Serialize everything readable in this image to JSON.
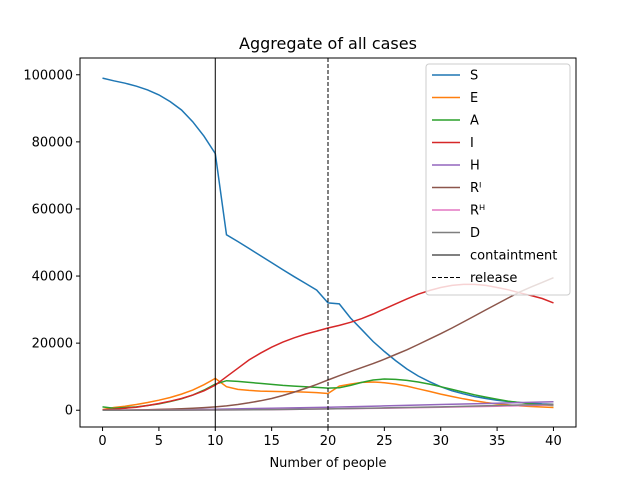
{
  "chart_data": {
    "type": "line",
    "title": "Aggregate of all cases",
    "xlabel": "Number of people",
    "ylabel": "",
    "xlim": [
      -2,
      42
    ],
    "ylim": [
      -5000,
      105000
    ],
    "xticks": [
      0,
      5,
      10,
      15,
      20,
      25,
      30,
      35,
      40
    ],
    "yticks": [
      0,
      20000,
      40000,
      60000,
      80000,
      100000
    ],
    "grid": false,
    "legend_position": "top-right",
    "series": [
      {
        "name": "S",
        "color": "#1f77b4",
        "x": [
          0,
          1,
          2,
          3,
          4,
          5,
          6,
          7,
          8,
          9,
          10,
          11,
          12,
          13,
          14,
          15,
          16,
          17,
          18,
          19,
          20,
          21,
          22,
          23,
          24,
          25,
          26,
          27,
          28,
          29,
          30,
          31,
          32,
          33,
          34,
          35,
          36,
          37,
          38,
          39,
          40
        ],
        "y": [
          99000,
          98200,
          97500,
          96600,
          95500,
          94000,
          92000,
          89500,
          86000,
          81700,
          76500,
          52300,
          50300,
          48200,
          46100,
          44000,
          41900,
          39800,
          37800,
          35800,
          32000,
          31700,
          27500,
          24000,
          20500,
          17500,
          14800,
          12300,
          10200,
          8500,
          7000,
          5800,
          4900,
          4100,
          3500,
          3000,
          2600,
          2300,
          2100,
          1900,
          1800
        ]
      },
      {
        "name": "E",
        "color": "#ff7f0e",
        "x": [
          0,
          1,
          2,
          3,
          4,
          5,
          6,
          7,
          8,
          9,
          10,
          11,
          12,
          13,
          14,
          15,
          16,
          17,
          18,
          19,
          20,
          21,
          22,
          23,
          24,
          25,
          26,
          27,
          28,
          29,
          30,
          31,
          32,
          33,
          34,
          35,
          36,
          37,
          38,
          39,
          40
        ],
        "y": [
          200,
          800,
          1200,
          1700,
          2300,
          3000,
          3800,
          4800,
          6000,
          7600,
          9500,
          7000,
          6200,
          5900,
          5700,
          5600,
          5550,
          5500,
          5400,
          5250,
          5000,
          7200,
          7800,
          8300,
          8400,
          8200,
          7800,
          7200,
          6400,
          5600,
          4800,
          4100,
          3400,
          2800,
          2300,
          1900,
          1600,
          1300,
          1100,
          950,
          800
        ]
      },
      {
        "name": "A",
        "color": "#2ca02c",
        "x": [
          0,
          1,
          2,
          3,
          4,
          5,
          6,
          7,
          8,
          9,
          10,
          11,
          12,
          13,
          14,
          15,
          16,
          17,
          18,
          19,
          20,
          21,
          22,
          23,
          24,
          25,
          26,
          27,
          28,
          29,
          30,
          31,
          32,
          33,
          34,
          35,
          36,
          37,
          38,
          39,
          40
        ],
        "y": [
          1000,
          600,
          800,
          1000,
          1400,
          1900,
          2600,
          3400,
          4500,
          6000,
          7800,
          8800,
          8600,
          8300,
          8000,
          7700,
          7400,
          7200,
          7000,
          6800,
          6600,
          6700,
          7400,
          8300,
          9000,
          9300,
          9200,
          8900,
          8400,
          7800,
          7000,
          6200,
          5400,
          4600,
          3900,
          3300,
          2700,
          2300,
          1900,
          1600,
          1400
        ]
      },
      {
        "name": "I",
        "color": "#d62728",
        "x": [
          0,
          1,
          2,
          3,
          4,
          5,
          6,
          7,
          8,
          9,
          10,
          11,
          12,
          13,
          14,
          15,
          16,
          17,
          18,
          19,
          20,
          21,
          22,
          23,
          24,
          25,
          26,
          27,
          28,
          29,
          30,
          31,
          32,
          33,
          34,
          35,
          36,
          37,
          38,
          39,
          40
        ],
        "y": [
          100,
          300,
          600,
          900,
          1400,
          2000,
          2700,
          3500,
          4500,
          5800,
          7500,
          10000,
          12500,
          15000,
          17000,
          18800,
          20300,
          21600,
          22700,
          23600,
          24500,
          25300,
          26200,
          27300,
          28700,
          30200,
          31700,
          33200,
          34600,
          35700,
          36600,
          37200,
          37500,
          37500,
          37200,
          36600,
          35900,
          35000,
          34200,
          33300,
          32000
        ]
      },
      {
        "name": "H",
        "color": "#9467bd",
        "x": [
          0,
          5,
          10,
          15,
          20,
          25,
          30,
          35,
          40
        ],
        "y": [
          0,
          100,
          300,
          600,
          900,
          1300,
          1700,
          2100,
          2500
        ]
      },
      {
        "name": "Rᴵ",
        "color": "#8c564b",
        "x": [
          0,
          1,
          2,
          3,
          4,
          5,
          6,
          7,
          8,
          9,
          10,
          11,
          12,
          13,
          14,
          15,
          16,
          17,
          18,
          19,
          20,
          21,
          22,
          23,
          24,
          25,
          26,
          27,
          28,
          29,
          30,
          31,
          32,
          33,
          34,
          35,
          36,
          37,
          38,
          39,
          40
        ],
        "y": [
          0,
          20,
          50,
          100,
          160,
          240,
          340,
          460,
          600,
          780,
          1000,
          1300,
          1700,
          2200,
          2800,
          3500,
          4400,
          5400,
          6500,
          7700,
          9000,
          10300,
          11500,
          12700,
          13900,
          15200,
          16600,
          18000,
          19600,
          21200,
          22800,
          24500,
          26300,
          28100,
          29900,
          31700,
          33500,
          35200,
          36700,
          38100,
          39500
        ]
      },
      {
        "name": "Rᴴ",
        "color": "#e377c2",
        "x": [
          0,
          5,
          10,
          15,
          20,
          25,
          30,
          35,
          40
        ],
        "y": [
          0,
          30,
          100,
          200,
          400,
          600,
          900,
          1200,
          1600
        ]
      },
      {
        "name": "D",
        "color": "#7f7f7f",
        "x": [
          0,
          5,
          10,
          15,
          20,
          25,
          30,
          35,
          40
        ],
        "y": [
          0,
          20,
          80,
          200,
          400,
          700,
          1000,
          1400,
          1800
        ]
      }
    ],
    "vlines": [
      {
        "name": "containtment",
        "x": 10,
        "style": "solid",
        "color": "#000000"
      },
      {
        "name": "release",
        "x": 20,
        "style": "dashed",
        "color": "#000000"
      }
    ]
  }
}
